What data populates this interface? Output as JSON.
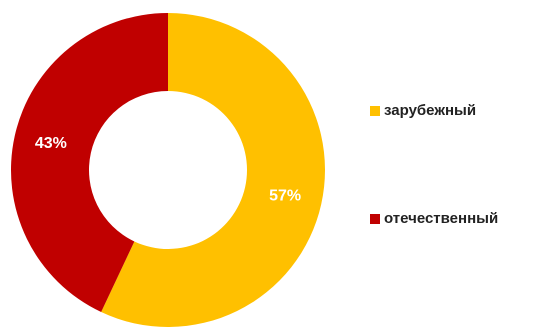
{
  "chart_data": {
    "type": "pie",
    "variant": "donut",
    "slices": [
      {
        "label": "зарубежный",
        "value": 57,
        "display": "57%",
        "color": "#FFC000"
      },
      {
        "label": "отечественный",
        "value": 43,
        "display": "43%",
        "color": "#C00000"
      }
    ],
    "legend_placement": "right",
    "title": ""
  }
}
